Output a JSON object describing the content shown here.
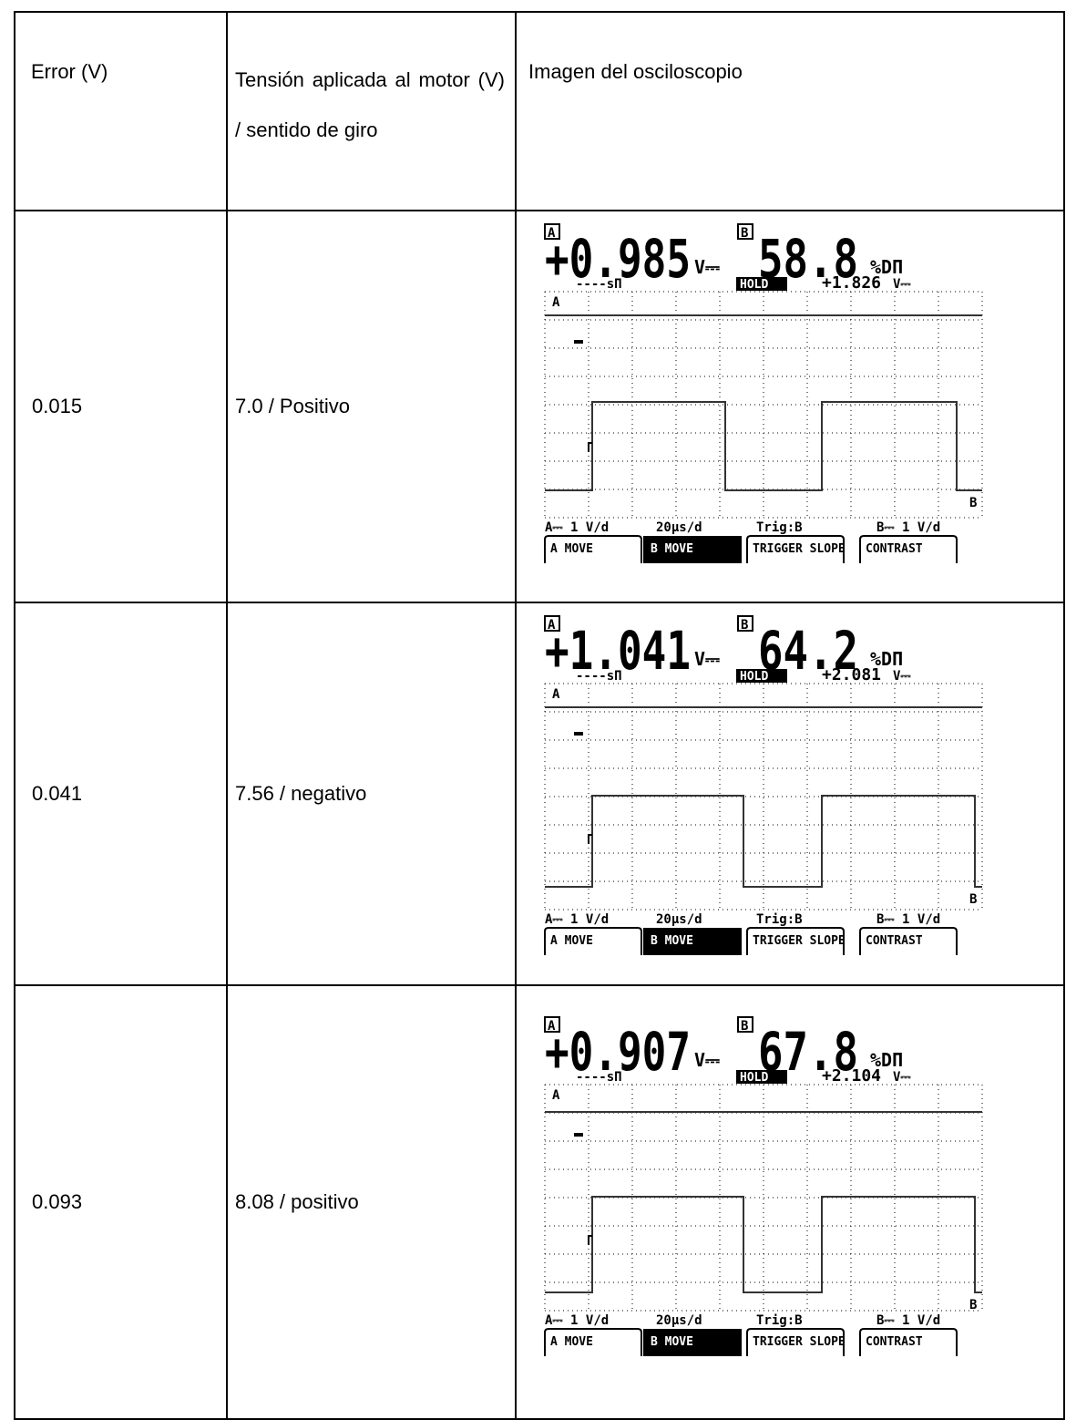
{
  "header": {
    "error": "Error (V)",
    "voltage": "Tensión aplicada al motor (V) / sentido de giro",
    "image": "Imagen del osciloscopio"
  },
  "rows": [
    {
      "error": "0.015",
      "voltage": "7.0 / Positivo",
      "scope": {
        "reading_a": "+0.985",
        "reading_b": "58.8",
        "reading_aux": "+1.826"
      }
    },
    {
      "error": "0.041",
      "voltage": "7.56 / negativo",
      "scope": {
        "reading_a": "+1.041",
        "reading_b": "64.2",
        "reading_aux": "+2.081"
      }
    },
    {
      "error": "0.093",
      "voltage": "8.08 / positivo",
      "scope": {
        "reading_a": "+0.907",
        "reading_b": "67.8",
        "reading_aux": "+2.104"
      }
    }
  ],
  "scope_common": {
    "badge_a": "A",
    "badge_b": "B",
    "unit_a": "V⎓",
    "unit_b": "%DΠ",
    "period": "----sΠ",
    "hold": "HOLD",
    "unit_aux": "V⎓",
    "trace_a": "A",
    "trace_b": "B",
    "footer": [
      "A⎓ 1 V/d",
      "20µs/d",
      "Trig:B",
      "B⎓ 1 V/d"
    ],
    "softkeys": [
      "A MOVE",
      "B MOVE",
      "TRIGGER SLOPE",
      "CONTRAST"
    ]
  }
}
